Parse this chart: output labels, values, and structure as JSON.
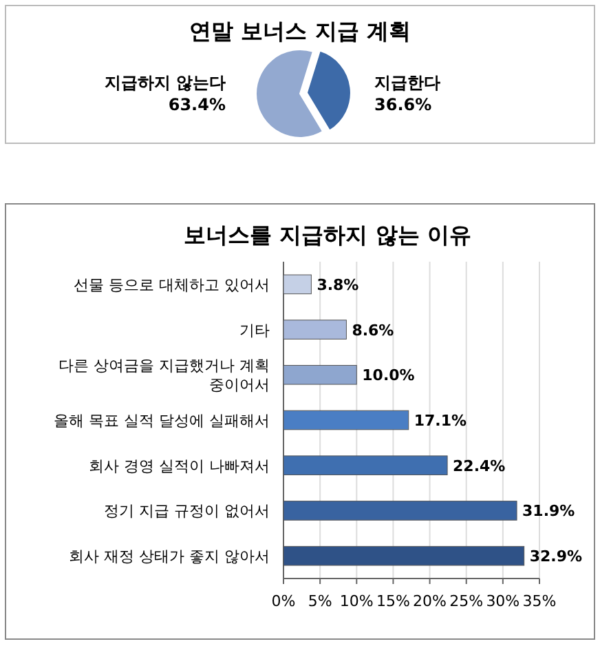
{
  "chart_data": [
    {
      "type": "pie",
      "title": "연말 보너스 지급 계획",
      "categories": [
        "지급한다",
        "지급하지 않는다"
      ],
      "values": [
        36.6,
        63.4
      ],
      "colors": [
        "#3d6aa8",
        "#93a9d0"
      ],
      "value_labels": [
        "36.6%",
        "63.4%"
      ]
    },
    {
      "type": "bar",
      "orientation": "horizontal",
      "title": "보너스를 지급하지 않는 이유",
      "categories": [
        "선물 등으로 대체하고 있어서",
        "기타",
        "다른 상여금을 지급했거나 계획 중이어서",
        "올해 목표 실적 달성에 실패해서",
        "회사 경영 실적이 나빠져서",
        "정기 지급 규정이 없어서",
        "회사 재정 상태가 좋지 않아서"
      ],
      "values": [
        3.8,
        8.6,
        10.0,
        17.1,
        22.4,
        31.9,
        32.9
      ],
      "value_labels": [
        "3.8%",
        "8.6%",
        "10.0%",
        "17.1%",
        "22.4%",
        "31.9%",
        "32.9%"
      ],
      "colors": [
        "#c5d0e6",
        "#a9b9dc",
        "#8ea6cf",
        "#4a7ec4",
        "#3f6fb0",
        "#3963a0",
        "#2f5287"
      ],
      "xlim": [
        0,
        35
      ],
      "xticks": [
        {
          "value": 0,
          "label": "0%"
        },
        {
          "value": 5,
          "label": "5%"
        },
        {
          "value": 10,
          "label": "10%"
        },
        {
          "value": 15,
          "label": "15%"
        },
        {
          "value": 20,
          "label": "20%"
        },
        {
          "value": 25,
          "label": "25%"
        },
        {
          "value": 30,
          "label": "30%"
        },
        {
          "value": 35,
          "label": "35%"
        }
      ],
      "grid": "x"
    }
  ]
}
